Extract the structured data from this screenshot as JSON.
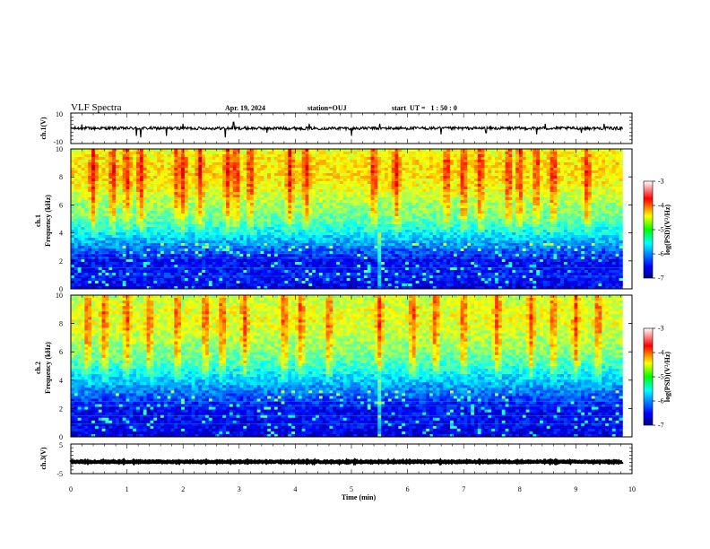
{
  "header": {
    "title": "VLF Spectra",
    "date": "Apr. 19, 2024",
    "station": "station=OUJ",
    "start": "start  UT =   1 : 50 : 0"
  },
  "colorbar_label": "log(PSD)(V²/Hz)",
  "chart_data": [
    {
      "type": "line",
      "ylabel": "ch.1(V)",
      "ylim": [
        -10,
        10
      ],
      "ytick_labels": [
        "10",
        "-10"
      ],
      "xlim": [
        0,
        10
      ],
      "x_extent_min": 9.83,
      "baseline": 0,
      "noise_amplitude": 1,
      "spikes": [
        {
          "x": 0.2,
          "y": 2.5
        },
        {
          "x": 1.17,
          "y": -5
        },
        {
          "x": 1.25,
          "y": -6
        },
        {
          "x": 1.7,
          "y": -5
        },
        {
          "x": 2.0,
          "y": 3
        },
        {
          "x": 2.75,
          "y": -6
        },
        {
          "x": 2.9,
          "y": 4
        },
        {
          "x": 3.5,
          "y": -3
        },
        {
          "x": 4.25,
          "y": 3
        },
        {
          "x": 5.0,
          "y": -5
        },
        {
          "x": 5.5,
          "y": 3
        },
        {
          "x": 6.6,
          "y": -4
        },
        {
          "x": 7.4,
          "y": -3
        },
        {
          "x": 8.3,
          "y": -4
        },
        {
          "x": 8.45,
          "y": 3
        },
        {
          "x": 9.1,
          "y": -3
        },
        {
          "x": 9.5,
          "y": 3
        }
      ]
    },
    {
      "type": "heatmap",
      "ylabel": "ch.1\nFrequency (kHz)",
      "ylim": [
        0,
        10
      ],
      "ytick_labels": [
        "0",
        "2",
        "4",
        "6",
        "8",
        "10"
      ],
      "xlim": [
        0,
        10
      ],
      "x_extent_min": 9.83,
      "colorbar": {
        "range": [
          -7,
          -3
        ],
        "tick_labels": [
          "-3",
          "-4",
          "-5",
          "-6",
          "-7"
        ],
        "label": "log(PSD)(V²/Hz)"
      },
      "log_psd_profile": [
        {
          "freq_khz": 0,
          "value": -6.6
        },
        {
          "freq_khz": 1,
          "value": -6.4
        },
        {
          "freq_khz": 2,
          "value": -6.5
        },
        {
          "freq_khz": 3,
          "value": -6.0
        },
        {
          "freq_khz": 4,
          "value": -5.5
        },
        {
          "freq_khz": 5,
          "value": -5.1
        },
        {
          "freq_khz": 6,
          "value": -4.9
        },
        {
          "freq_khz": 7,
          "value": -4.6
        },
        {
          "freq_khz": 8,
          "value": -4.4
        },
        {
          "freq_khz": 9,
          "value": -4.4
        },
        {
          "freq_khz": 10,
          "value": -4.6
        }
      ],
      "bursts_min": [
        0.4,
        0.75,
        1.0,
        1.25,
        1.9,
        2.0,
        2.3,
        2.8,
        2.95,
        3.2,
        3.9,
        4.2,
        5.4,
        5.8,
        6.7,
        7.0,
        7.3,
        7.8,
        8.0,
        8.3,
        8.6,
        9.2
      ],
      "event_min": 5.5
    },
    {
      "type": "heatmap",
      "ylabel": "ch.2\nFrequency (kHz)",
      "ylim": [
        0,
        10
      ],
      "ytick_labels": [
        "0",
        "2",
        "4",
        "6",
        "8",
        "10"
      ],
      "xlim": [
        0,
        10
      ],
      "x_extent_min": 9.83,
      "colorbar": {
        "range": [
          -7,
          -3
        ],
        "tick_labels": [
          "-3",
          "-4",
          "-5",
          "-6",
          "-7"
        ],
        "label": "log(PSD)(V²/Hz)"
      },
      "log_psd_profile": [
        {
          "freq_khz": 0,
          "value": -6.6
        },
        {
          "freq_khz": 1,
          "value": -6.5
        },
        {
          "freq_khz": 2,
          "value": -6.5
        },
        {
          "freq_khz": 3,
          "value": -6.1
        },
        {
          "freq_khz": 4,
          "value": -5.7
        },
        {
          "freq_khz": 5,
          "value": -5.3
        },
        {
          "freq_khz": 6,
          "value": -5.0
        },
        {
          "freq_khz": 7,
          "value": -4.8
        },
        {
          "freq_khz": 8,
          "value": -4.6
        },
        {
          "freq_khz": 9,
          "value": -4.6
        },
        {
          "freq_khz": 10,
          "value": -4.8
        }
      ],
      "bursts_min": [
        0.3,
        0.6,
        1.0,
        1.4,
        1.9,
        2.4,
        2.7,
        3.1,
        3.8,
        4.1,
        4.6,
        5.5,
        6.1,
        6.5,
        7.0,
        7.6,
        8.2,
        8.6,
        9.0,
        9.4
      ],
      "event_min": 5.5
    },
    {
      "type": "line",
      "ylabel": "ch.3(V)",
      "ylim": [
        -5,
        5
      ],
      "ytick_labels": [
        "5",
        "-5"
      ],
      "xlim": [
        0,
        10
      ],
      "x_extent_min": 9.83,
      "xlabel": "Time (min)",
      "xtick_labels": [
        "0",
        "1",
        "2",
        "3",
        "4",
        "5",
        "6",
        "7",
        "8",
        "9",
        "10"
      ],
      "baseline": -1,
      "noise_amplitude": 0.2
    }
  ]
}
